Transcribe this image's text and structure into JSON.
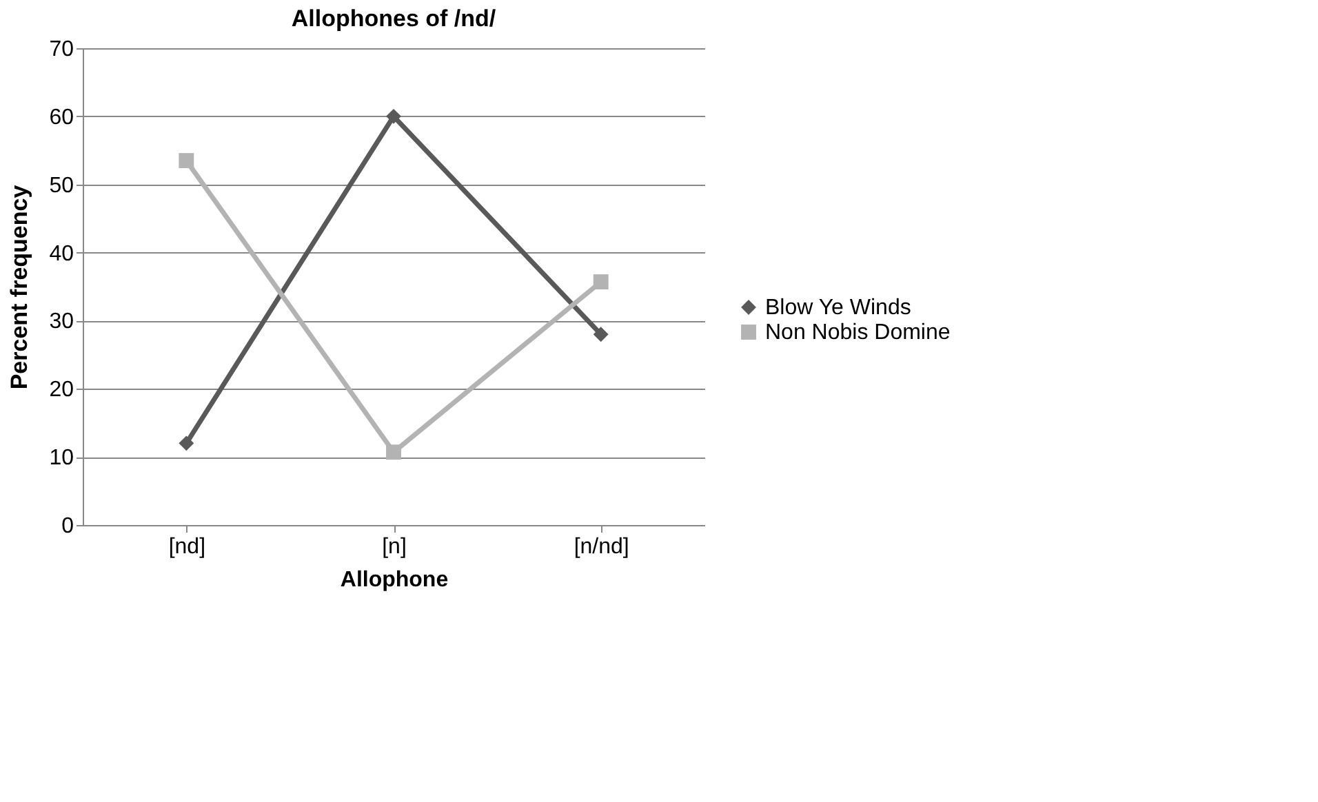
{
  "chart_data": {
    "type": "line",
    "title": "Allophones of /nd/",
    "xlabel": "Allophone",
    "ylabel": "Percent frequency",
    "categories": [
      "[nd]",
      "[n]",
      "[n/nd]"
    ],
    "series": [
      {
        "name": "Blow Ye Winds",
        "color": "#595959",
        "marker": "diamond",
        "values": [
          12,
          60,
          28
        ]
      },
      {
        "name": "Non Nobis Domine",
        "color": "#b3b3b3",
        "marker": "square",
        "values": [
          53.5,
          10.7,
          35.7
        ]
      }
    ],
    "ylim": [
      0,
      70
    ],
    "yticks": [
      0,
      10,
      20,
      30,
      40,
      50,
      60,
      70
    ],
    "grid": "y",
    "legend": "right",
    "line_style": "solid"
  }
}
